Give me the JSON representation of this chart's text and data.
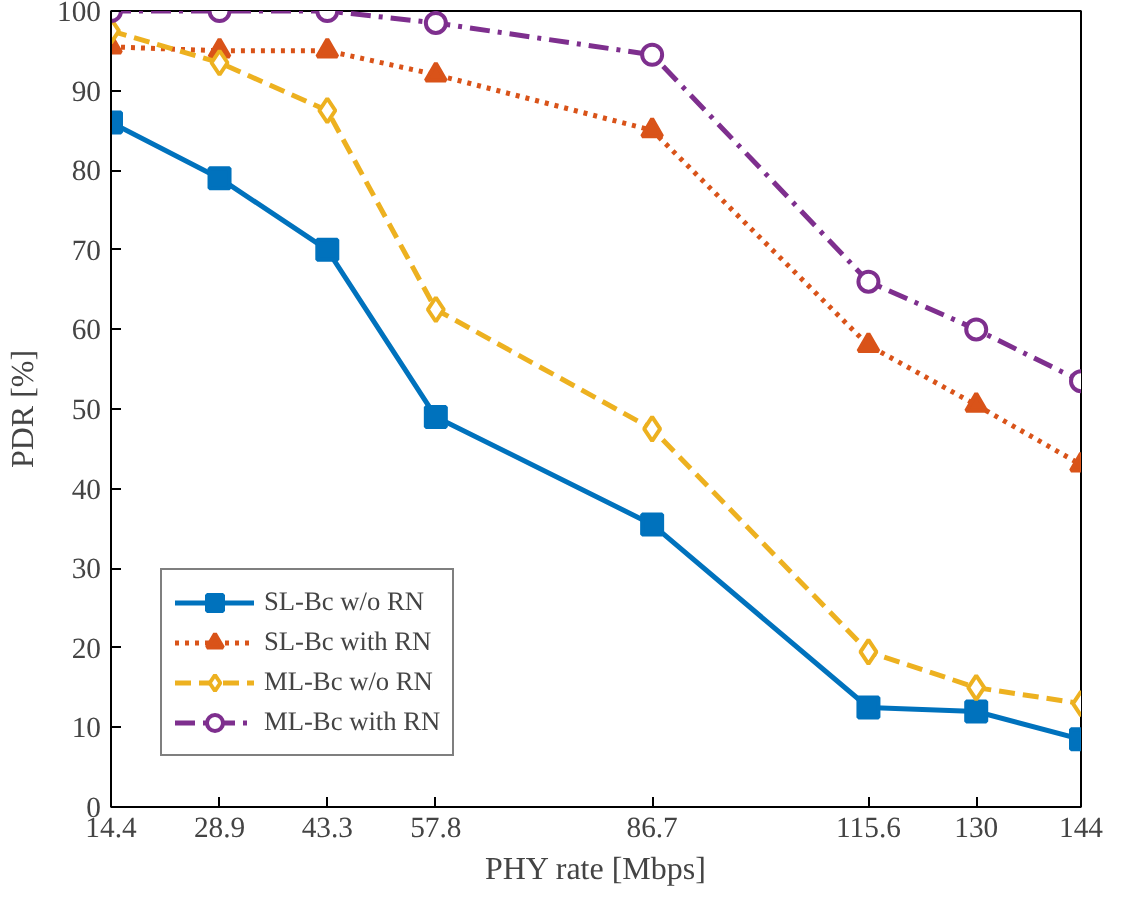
{
  "chart_data": {
    "type": "line",
    "xlabel": "PHY rate [Mbps]",
    "ylabel": "PDR [%]",
    "x": [
      14.4,
      28.9,
      43.3,
      57.8,
      86.7,
      115.6,
      130,
      144
    ],
    "xlim": [
      14.4,
      144
    ],
    "xticks": [
      14.4,
      28.9,
      43.3,
      57.8,
      86.7,
      115.6,
      130,
      144
    ],
    "ylim": [
      0,
      100
    ],
    "yticks": [
      0,
      10,
      20,
      30,
      40,
      50,
      60,
      70,
      80,
      90,
      100
    ],
    "grid": false,
    "legend": "bottom left",
    "series": [
      {
        "name": "SL-Bc w/o RN",
        "color": "#0072bd",
        "marker": "square",
        "line_style": "solid",
        "values": [
          86,
          79,
          70,
          49,
          35.5,
          12.5,
          12,
          8.5
        ]
      },
      {
        "name": "SL-Bc with RN",
        "color": "#d95319",
        "marker": "triangle",
        "line_style": "dotted",
        "values": [
          95.5,
          95,
          95,
          92,
          85,
          58,
          50.5,
          43
        ]
      },
      {
        "name": "ML-Bc w/o RN",
        "color": "#edb120",
        "marker": "diamond",
        "line_style": "dashed",
        "values": [
          97.5,
          93.5,
          87.5,
          62.5,
          47.5,
          19.5,
          15,
          13
        ]
      },
      {
        "name": "ML-Bc with RN",
        "color": "#7e2f8e",
        "marker": "circle",
        "line_style": "dashdot",
        "values": [
          100,
          100,
          100,
          98.5,
          94.5,
          66,
          60,
          53.5
        ]
      }
    ]
  }
}
